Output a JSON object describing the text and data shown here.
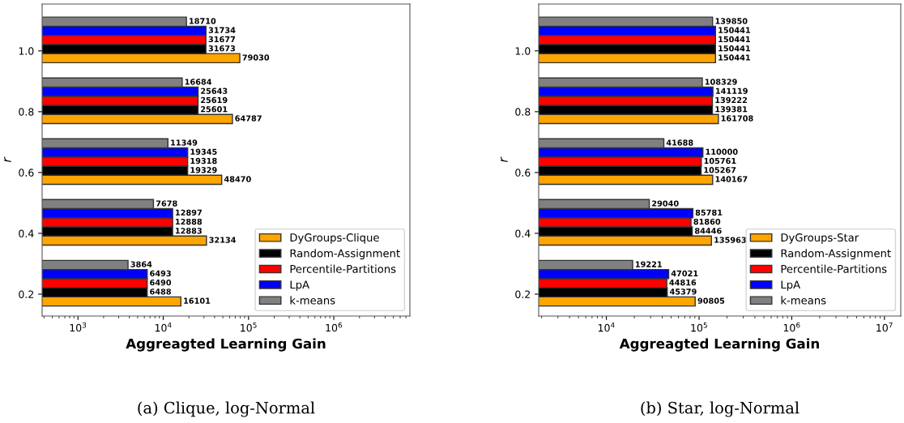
{
  "chart_data": [
    {
      "type": "bar",
      "orientation": "horizontal",
      "log": "x",
      "xlabel": "Aggreagted Learning Gain",
      "ylabel": "r",
      "categories": [
        "1.0",
        "0.8",
        "0.6",
        "0.4",
        "0.2"
      ],
      "series": [
        {
          "name": "DyGroups-Clique",
          "color": "#ffa500",
          "values": [
            79030,
            64787,
            48470,
            32134,
            16101
          ]
        },
        {
          "name": "Random-Assignment",
          "color": "#000000",
          "values": [
            31673,
            25601,
            19329,
            12883,
            6488
          ]
        },
        {
          "name": "Percentile-Partitions",
          "color": "#ff0000",
          "values": [
            31677,
            25619,
            19318,
            12888,
            6490
          ]
        },
        {
          "name": "LpA",
          "color": "#0000ff",
          "values": [
            31734,
            25643,
            19345,
            12897,
            6493
          ]
        },
        {
          "name": "k-means",
          "color": "#808080",
          "values": [
            18710,
            16684,
            11349,
            7678,
            3864
          ]
        }
      ],
      "xlim": [
        380,
        7800000
      ],
      "xticks": [
        {
          "value": 1000,
          "label": "10$^{3}$"
        },
        {
          "value": 10000,
          "label": "10$^{4}$"
        },
        {
          "value": 100000,
          "label": "10$^{5}$"
        },
        {
          "value": 1000000,
          "label": "10$^{6}$"
        }
      ],
      "data_labels": true,
      "legend": "bottom right",
      "grid": false,
      "annotations": [
        "(a) Clique, log-Normal"
      ]
    },
    {
      "type": "bar",
      "orientation": "horizontal",
      "log": "x",
      "xlabel": "Aggreagted Learning Gain",
      "ylabel": "r",
      "categories": [
        "1.0",
        "0.8",
        "0.6",
        "0.4",
        "0.2"
      ],
      "series": [
        {
          "name": "DyGroups-Star",
          "color": "#ffa500",
          "values": [
            150441,
            161708,
            140167,
            135963,
            90805
          ]
        },
        {
          "name": "Random-Assignment",
          "color": "#000000",
          "values": [
            150441,
            139381,
            105267,
            84446,
            45379
          ]
        },
        {
          "name": "Percentile-Partitions",
          "color": "#ff0000",
          "values": [
            150441,
            139222,
            105761,
            81860,
            44816
          ]
        },
        {
          "name": "LpA",
          "color": "#0000ff",
          "values": [
            150441,
            141119,
            110000,
            85781,
            47021
          ]
        },
        {
          "name": "k-means",
          "color": "#808080",
          "values": [
            139850,
            108329,
            41688,
            29040,
            19221
          ]
        }
      ],
      "xlim": [
        1860,
        15000000
      ],
      "xticks": [
        {
          "value": 10000,
          "label": "10$^{4}$"
        },
        {
          "value": 100000,
          "label": "10$^{5}$"
        },
        {
          "value": 1000000,
          "label": "10$^{6}$"
        },
        {
          "value": 10000000,
          "label": "10$^{7}$"
        }
      ],
      "data_labels": true,
      "legend": "bottom right",
      "grid": false,
      "annotations": [
        "(b) Star, log-Normal"
      ]
    }
  ]
}
